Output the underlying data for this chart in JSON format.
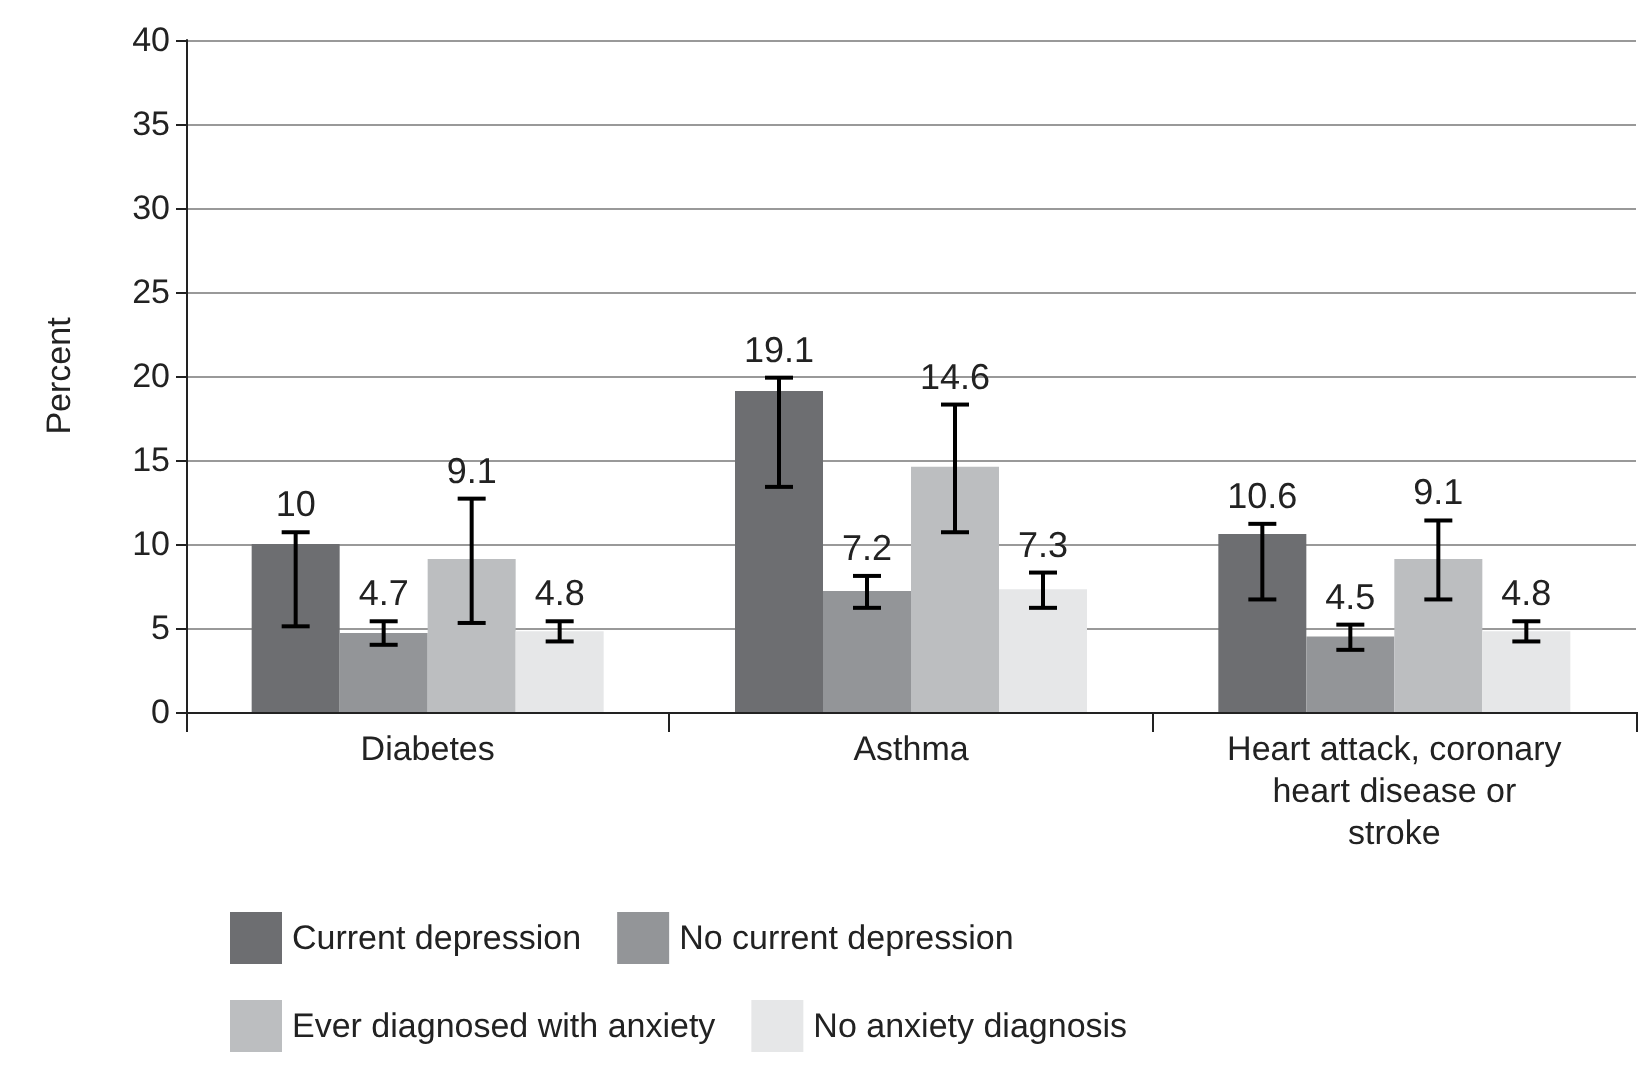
{
  "chart_data": {
    "type": "bar",
    "ylabel": "Percent",
    "categories": [
      "Diabetes",
      "Asthma",
      "Heart attack, coronary heart disease or stroke"
    ],
    "series": [
      {
        "name": "Current depression",
        "color": "#6d6e71",
        "values": [
          10,
          19.1,
          10.6
        ],
        "errors": [
          [
            5.1,
            10.7
          ],
          [
            13.4,
            19.9
          ],
          [
            6.7,
            11.2
          ]
        ]
      },
      {
        "name": "No current depression",
        "color": "#939598",
        "values": [
          4.7,
          7.2,
          4.5
        ],
        "errors": [
          [
            4.0,
            5.4
          ],
          [
            6.2,
            8.1
          ],
          [
            3.7,
            5.2
          ]
        ]
      },
      {
        "name": "Ever diagnosed with anxiety",
        "color": "#bcbec0",
        "values": [
          9.1,
          14.6,
          9.1
        ],
        "errors": [
          [
            5.3,
            12.7
          ],
          [
            10.7,
            18.3
          ],
          [
            6.7,
            11.4
          ]
        ]
      },
      {
        "name": "No anxiety diagnosis",
        "color": "#e6e7e8",
        "values": [
          4.8,
          7.3,
          4.8
        ],
        "errors": [
          [
            4.2,
            5.4
          ],
          [
            6.2,
            8.3
          ],
          [
            4.2,
            5.4
          ]
        ]
      }
    ],
    "ylim": [
      0,
      40
    ],
    "yticks": [
      0,
      5,
      10,
      15,
      20,
      25,
      30,
      35,
      40
    ],
    "grid": "y",
    "legend": "bottom",
    "data_labels": true
  }
}
